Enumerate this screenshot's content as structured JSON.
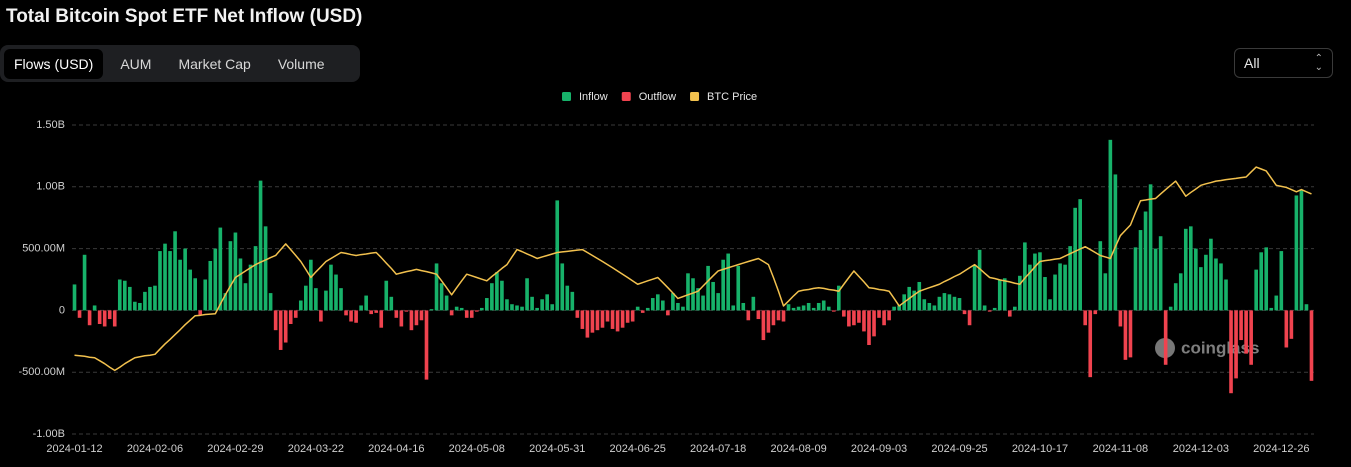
{
  "ui": {
    "title": "Total Bitcoin Spot ETF Net Inflow (USD)",
    "tabs": [
      "Flows (USD)",
      "AUM",
      "Market Cap",
      "Volume"
    ],
    "active_tab": 0,
    "range_select": "All",
    "watermark": "coinglass"
  },
  "chart_data": {
    "type": "bar",
    "categories": [
      "2024-01-12",
      null,
      null,
      null,
      null,
      null,
      null,
      null,
      null,
      null,
      null,
      null,
      null,
      null,
      null,
      null,
      "2024-02-06",
      null,
      null,
      null,
      null,
      null,
      null,
      null,
      null,
      null,
      null,
      null,
      null,
      null,
      null,
      null,
      "2024-02-29",
      null,
      null,
      null,
      null,
      null,
      null,
      null,
      null,
      null,
      null,
      null,
      null,
      null,
      null,
      null,
      "2024-03-22",
      null,
      null,
      null,
      null,
      null,
      null,
      null,
      null,
      null,
      null,
      null,
      null,
      null,
      null,
      null,
      "2024-04-16",
      null,
      null,
      null,
      null,
      null,
      null,
      null,
      null,
      null,
      null,
      null,
      null,
      null,
      null,
      null,
      "2024-05-08",
      null,
      null,
      null,
      null,
      null,
      null,
      null,
      null,
      null,
      null,
      null,
      null,
      null,
      null,
      null,
      "2024-05-31",
      null,
      null,
      null,
      null,
      null,
      null,
      null,
      null,
      null,
      null,
      null,
      null,
      null,
      null,
      null,
      "2024-06-25",
      null,
      null,
      null,
      null,
      null,
      null,
      null,
      null,
      null,
      null,
      null,
      null,
      null,
      null,
      null,
      "2024-07-18",
      null,
      null,
      null,
      null,
      null,
      null,
      null,
      null,
      null,
      null,
      null,
      null,
      null,
      null,
      null,
      "2024-08-09",
      null,
      null,
      null,
      null,
      null,
      null,
      null,
      null,
      null,
      null,
      null,
      null,
      null,
      null,
      null,
      "2024-09-03",
      null,
      null,
      null,
      null,
      null,
      null,
      null,
      null,
      null,
      null,
      null,
      null,
      null,
      null,
      null,
      "2024-09-25",
      null,
      null,
      null,
      null,
      null,
      null,
      null,
      null,
      null,
      null,
      null,
      null,
      null,
      null,
      null,
      "2024-10-17",
      null,
      null,
      null,
      null,
      null,
      null,
      null,
      null,
      null,
      null,
      null,
      null,
      null,
      null,
      null,
      "2024-11-08",
      null,
      null,
      null,
      null,
      null,
      null,
      null,
      null,
      null,
      null,
      null,
      null,
      null,
      null,
      null,
      "2024-12-03",
      null,
      null,
      null,
      null,
      null,
      null,
      null,
      null,
      null,
      null,
      null,
      null,
      null,
      null,
      null,
      "2024-12-26",
      null,
      null,
      null,
      null,
      null,
      null
    ],
    "values": [
      210000000.0,
      -60000000.0,
      450000000.0,
      -120000000.0,
      40000000.0,
      -110000000.0,
      -130000000.0,
      -70000000.0,
      -130000000.0,
      250000000.0,
      240000000.0,
      190000000.0,
      70000000.0,
      60000000.0,
      150000000.0,
      190000000.0,
      200000000.0,
      480000000.0,
      540000000.0,
      480000000.0,
      640000000.0,
      410000000.0,
      500000000.0,
      330000000.0,
      260000000.0,
      -40000000.0,
      250000000.0,
      400000000.0,
      500000000.0,
      670000000.0,
      140000000.0,
      560000000.0,
      630000000.0,
      420000000.0,
      220000000.0,
      370000000.0,
      520000000.0,
      1050000000.0,
      680000000.0,
      140000000.0,
      -160000000.0,
      -320000000.0,
      -260000000.0,
      -110000000.0,
      -60000000.0,
      80000000.0,
      200000000.0,
      410000000.0,
      180000000.0,
      -90000000.0,
      160000000.0,
      370000000.0,
      290000000.0,
      180000000.0,
      -40000000.0,
      -90000000.0,
      -100000000.0,
      40000000.0,
      120000000.0,
      -30000000.0,
      -20000000.0,
      -140000000.0,
      240000000.0,
      110000000.0,
      -60000000.0,
      -130000000.0,
      -10000000.0,
      -160000000.0,
      -120000000.0,
      -80000000.0,
      -560000000.0,
      10000000.0,
      380000000.0,
      220000000.0,
      120000000.0,
      -40000000.0,
      30000000.0,
      20000000.0,
      -60000000.0,
      -60000000.0,
      -10000000.0,
      20000000.0,
      100000000.0,
      220000000.0,
      310000000.0,
      240000000.0,
      90000000.0,
      50000000.0,
      40000000.0,
      30000000.0,
      260000000.0,
      110000000.0,
      20000000.0,
      90000000.0,
      130000000.0,
      50000000.0,
      890000000.0,
      380000000.0,
      200000000.0,
      150000000.0,
      -60000000.0,
      -150000000.0,
      -220000000.0,
      -180000000.0,
      -160000000.0,
      -140000000.0,
      -90000000.0,
      -150000000.0,
      -170000000.0,
      -140000000.0,
      -100000000.0,
      -90000000.0,
      30000000.0,
      -20000000.0,
      20000000.0,
      100000000.0,
      130000000.0,
      80000000.0,
      -40000000.0,
      140000000.0,
      60000000.0,
      30000000.0,
      300000000.0,
      260000000.0,
      180000000.0,
      120000000.0,
      360000000.0,
      230000000.0,
      140000000.0,
      410000000.0,
      460000000.0,
      40000000.0,
      360000000.0,
      60000000.0,
      -80000000.0,
      110000000.0,
      -70000000.0,
      -240000000.0,
      -180000000.0,
      -120000000.0,
      -80000000.0,
      -90000000.0,
      50000000.0,
      20000000.0,
      30000000.0,
      40000000.0,
      60000000.0,
      20000000.0,
      60000000.0,
      80000000.0,
      30000000.0,
      -10000000.0,
      200000000.0,
      -50000000.0,
      -130000000.0,
      -120000000.0,
      -100000000.0,
      -170000000.0,
      -280000000.0,
      -210000000.0,
      -60000000.0,
      -120000000.0,
      -80000000.0,
      30000000.0,
      40000000.0,
      130000000.0,
      190000000.0,
      160000000.0,
      230000000.0,
      90000000.0,
      60000000.0,
      40000000.0,
      110000000.0,
      140000000.0,
      130000000.0,
      110000000.0,
      100000000.0,
      -30000000.0,
      -120000000.0,
      360000000.0,
      490000000.0,
      40000000.0,
      -10000000.0,
      20000000.0,
      250000000.0,
      260000000.0,
      -50000000.0,
      30000000.0,
      280000000.0,
      550000000.0,
      370000000.0,
      460000000.0,
      470000000.0,
      270000000.0,
      90000000.0,
      290000000.0,
      380000000.0,
      370000000.0,
      520000000.0,
      830000000.0,
      900000000.0,
      -120000000.0,
      -540000000.0,
      -30000000.0,
      560000000.0,
      300000000.0,
      1380000000.0,
      1100000000.0,
      -130000000.0,
      -400000000.0,
      -380000000.0,
      510000000.0,
      650000000.0,
      800000000.0,
      1020000000.0,
      500000000.0,
      600000000.0,
      -440000000.0,
      30000000.0,
      220000000.0,
      300000000.0,
      660000000.0,
      680000000.0,
      500000000.0,
      350000000.0,
      450000000.0,
      580000000.0,
      420000000.0,
      380000000.0,
      250000000.0,
      -670000000.0,
      -550000000.0,
      -240000000.0,
      -350000000.0,
      -440000000.0,
      330000000.0,
      470000000.0,
      510000000.0,
      20000000.0,
      120000000.0,
      480000000.0,
      -300000000.0,
      -230000000.0,
      930000000.0,
      970000000.0,
      50000000.0,
      -570000000.0
    ],
    "legend": [
      {
        "name": "Inflow",
        "color": "#17b26a"
      },
      {
        "name": "Outflow",
        "color": "#f0434f"
      }
    ],
    "line": {
      "name": "BTC Price",
      "color": "#f2c14e",
      "axis": "y2",
      "values": [
        42500,
        42400,
        42300,
        42100,
        42000,
        41400,
        40800,
        40100,
        39500,
        40100,
        40800,
        41400,
        42000,
        42200,
        42400,
        42500,
        42700,
        43800,
        44900,
        45900,
        47000,
        48100,
        49300,
        50400,
        51500,
        51600,
        51800,
        51900,
        52000,
        54500,
        57000,
        59500,
        62000,
        63000,
        64000,
        65000,
        66000,
        66800,
        67500,
        68300,
        69000,
        71000,
        73000,
        71000,
        69000,
        67000,
        64500,
        62000,
        63700,
        65300,
        67000,
        68000,
        69000,
        70000,
        69700,
        69300,
        69000,
        69300,
        69500,
        69800,
        70000,
        68300,
        66500,
        64800,
        63000,
        63400,
        63800,
        64100,
        64500,
        64100,
        63800,
        63400,
        63000,
        61000,
        59000,
        57000,
        59000,
        61000,
        63000,
        62500,
        62000,
        61500,
        61000,
        62300,
        63500,
        64800,
        66000,
        68500,
        71000,
        70300,
        69500,
        68800,
        68000,
        68500,
        69000,
        69500,
        70000,
        70200,
        70400,
        70600,
        70800,
        71000,
        70000,
        69000,
        68000,
        67000,
        66000,
        65000,
        64000,
        63000,
        62000,
        61000,
        60000,
        60500,
        61000,
        61500,
        62000,
        60500,
        59000,
        57500,
        56000,
        56500,
        57000,
        57500,
        58000,
        59500,
        61000,
        62500,
        64000,
        64500,
        65000,
        65500,
        66000,
        66500,
        67000,
        67500,
        68000,
        67000,
        66000,
        62000,
        58000,
        54000,
        55300,
        56700,
        58000,
        58300,
        58500,
        58800,
        59000,
        58800,
        58500,
        58300,
        58000,
        60000,
        62000,
        64000,
        62300,
        60700,
        59000,
        58800,
        58500,
        58300,
        58000,
        56000,
        54000,
        55000,
        56000,
        57000,
        58000,
        58500,
        59000,
        59500,
        60000,
        60800,
        61500,
        62300,
        63000,
        64000,
        65000,
        66000,
        64700,
        63300,
        62000,
        61700,
        61300,
        61000,
        60700,
        60300,
        60000,
        61800,
        63500,
        65300,
        67000,
        67300,
        67500,
        67800,
        68000,
        68800,
        69600,
        70400,
        71200,
        72000,
        71000,
        70000,
        69000,
        68500,
        68000,
        72000,
        76000,
        78000,
        80000,
        85000,
        90000,
        90300,
        90700,
        91000,
        93000,
        95000,
        97000,
        99000,
        95500,
        92000,
        93700,
        95300,
        97000,
        97700,
        98300,
        99000,
        99300,
        99700,
        100000,
        100300,
        100700,
        101000,
        103500,
        106000,
        105000,
        104000,
        100500,
        97000,
        96500,
        96000,
        95000,
        94000,
        95000,
        94000,
        93000
      ]
    },
    "ylim": [
      -1000000000,
      1500000000
    ],
    "yticks": [
      {
        "value": -1000000000,
        "label": "-1.00B"
      },
      {
        "value": -500000000,
        "label": "-500.00M"
      },
      0,
      {
        "value": 500000000,
        "label": "500.00M"
      },
      {
        "value": 1000000000,
        "label": "1.00B"
      },
      {
        "value": 1500000000,
        "label": "1.50B"
      }
    ],
    "y2lim": [
      29000,
      130000
    ],
    "y2log": true,
    "grid": true,
    "legend_position": "top"
  }
}
